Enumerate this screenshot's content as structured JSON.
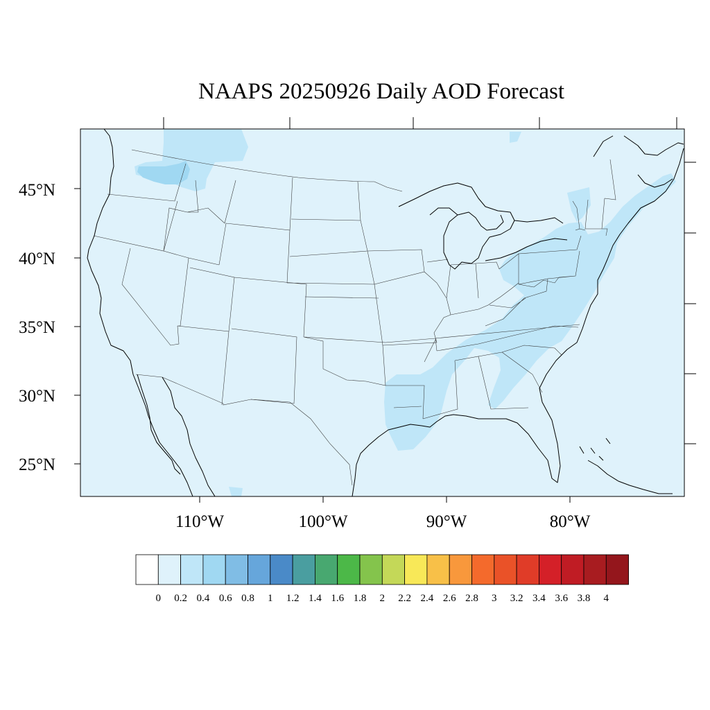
{
  "map": {
    "title": "NAAPS 20250926 Daily AOD Forecast",
    "lat_labels": [
      "25°N",
      "30°N",
      "35°N",
      "40°N",
      "45°N"
    ],
    "lon_labels": [
      "110°W",
      "100°W",
      "90°W",
      "80°W"
    ],
    "background_color": "#dff2fb",
    "plume_colors": {
      "light": "#bfe6f8",
      "medium": "#a0d8f2"
    }
  },
  "colorbar": {
    "labels": [
      "0",
      "0.2",
      "0.4",
      "0.6",
      "0.8",
      "1",
      "1.2",
      "1.4",
      "1.6",
      "1.8",
      "2",
      "2.2",
      "2.4",
      "2.6",
      "2.8",
      "3",
      "3.2",
      "3.4",
      "3.6",
      "3.8",
      "4"
    ],
    "colors": [
      "#ffffff",
      "#dff2fb",
      "#bfe6f8",
      "#a0d8f2",
      "#80bde5",
      "#66a6db",
      "#4a8ac8",
      "#4a9ea0",
      "#48a870",
      "#4cb848",
      "#84c44c",
      "#c4d858",
      "#f8e858",
      "#f8c048",
      "#f8983c",
      "#f46a2c",
      "#ea5228",
      "#e03c28",
      "#d42028",
      "#c01c24",
      "#a81c20",
      "#94161c"
    ]
  }
}
